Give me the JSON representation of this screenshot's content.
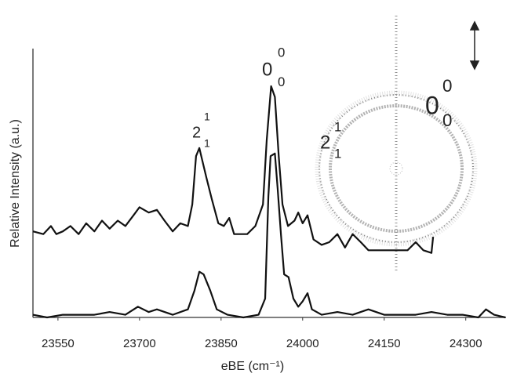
{
  "chart_data": {
    "type": "line",
    "xlabel": "eBE (cm⁻¹)",
    "ylabel": "Relative Intensity (a.u.)",
    "xlim": [
      23504,
      24374
    ],
    "xticks": [
      23550,
      23700,
      23850,
      24000,
      24150,
      24300
    ],
    "ylim": [
      0,
      1
    ],
    "series": [
      {
        "color": "#111111",
        "x": [
          23504,
          23523,
          23537,
          23547,
          23559,
          23573,
          23588,
          23602,
          23617,
          23631,
          23645,
          23660,
          23674,
          23689,
          23700,
          23717,
          23732,
          23746,
          23761,
          23775,
          23789,
          23797,
          23804,
          23810,
          23816,
          23823,
          23833,
          23845,
          23855,
          23865,
          23874,
          23884,
          23898,
          23913,
          23927,
          23934,
          23942,
          23949,
          23956,
          23963,
          23973,
          23985,
          23992,
          24000,
          24009,
          24020,
          24035,
          24049,
          24064,
          24078,
          24092,
          24107,
          24121,
          24136,
          24165,
          24193,
          24208,
          24222,
          24237,
          24240
        ],
        "values": [
          0.32,
          0.31,
          0.34,
          0.31,
          0.32,
          0.34,
          0.31,
          0.35,
          0.32,
          0.36,
          0.33,
          0.36,
          0.34,
          0.38,
          0.41,
          0.39,
          0.4,
          0.36,
          0.32,
          0.35,
          0.34,
          0.42,
          0.6,
          0.63,
          0.58,
          0.52,
          0.44,
          0.35,
          0.34,
          0.37,
          0.31,
          0.31,
          0.31,
          0.34,
          0.42,
          0.66,
          0.86,
          0.82,
          0.6,
          0.42,
          0.34,
          0.36,
          0.39,
          0.35,
          0.38,
          0.29,
          0.27,
          0.28,
          0.31,
          0.26,
          0.31,
          0.28,
          0.25,
          0.25,
          0.25,
          0.25,
          0.28,
          0.25,
          0.24,
          0.3
        ]
      },
      {
        "color": "#111111",
        "x": [
          23504,
          23530,
          23559,
          23588,
          23617,
          23645,
          23674,
          23697,
          23717,
          23732,
          23761,
          23789,
          23801,
          23810,
          23818,
          23830,
          23842,
          23862,
          23891,
          23919,
          23931,
          23937,
          23941,
          23949,
          23954,
          23960,
          23966,
          23974,
          23983,
          23992,
          24000,
          24009,
          24017,
          24035,
          24064,
          24092,
          24121,
          24150,
          24179,
          24208,
          24237,
          24266,
          24294,
          24323,
          24337,
          24352,
          24373
        ],
        "values": [
          0.01,
          0,
          0.01,
          0.01,
          0.01,
          0.02,
          0.01,
          0.04,
          0.02,
          0.03,
          0.01,
          0.03,
          0.1,
          0.17,
          0.16,
          0.1,
          0.03,
          0.01,
          0,
          0.01,
          0.07,
          0.45,
          0.6,
          0.61,
          0.48,
          0.31,
          0.16,
          0.15,
          0.07,
          0.04,
          0.06,
          0.09,
          0.03,
          0.01,
          0.02,
          0.01,
          0.03,
          0.01,
          0.01,
          0.01,
          0.02,
          0.01,
          0.01,
          0,
          0.03,
          0.01,
          0
        ]
      }
    ],
    "annotations": [
      {
        "base": "0",
        "sup": "0",
        "sub": "0"
      },
      {
        "base": "2",
        "sup": "1",
        "sub": "1"
      }
    ],
    "inset_labels": [
      {
        "base": "0",
        "sup": "0",
        "sub": "0"
      },
      {
        "base": "2",
        "sup": "1",
        "sub": "1"
      }
    ]
  }
}
